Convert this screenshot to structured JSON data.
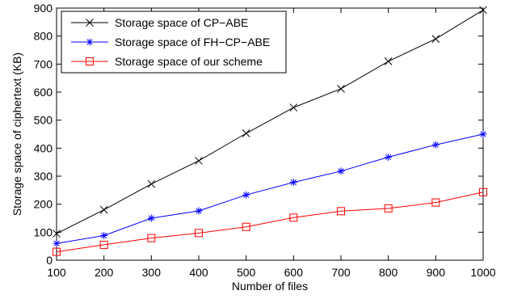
{
  "chart_data": {
    "type": "line",
    "xlabel": "Number of files",
    "ylabel": "Storage space of ciphertext (KB)",
    "xlim": [
      100,
      1000
    ],
    "ylim": [
      0,
      900
    ],
    "x": [
      100,
      200,
      300,
      400,
      500,
      600,
      700,
      800,
      900,
      1000
    ],
    "x_ticks": [
      "100",
      "200",
      "300",
      "400",
      "500",
      "600",
      "700",
      "800",
      "900",
      "1000"
    ],
    "y_ticks": [
      "0",
      "100",
      "200",
      "300",
      "400",
      "500",
      "600",
      "700",
      "800",
      "900"
    ],
    "grid": false,
    "legend_position": "top-left",
    "series": [
      {
        "name": "Storage space of CP−ABE",
        "color": "#000000",
        "marker": "x",
        "values": [
          95,
          180,
          272,
          355,
          453,
          545,
          612,
          710,
          790,
          893
        ]
      },
      {
        "name": "Storage space of FH−CP−ABE",
        "color": "#0000ff",
        "marker": "asterisk",
        "values": [
          60,
          88,
          150,
          176,
          233,
          278,
          318,
          368,
          412,
          450
        ]
      },
      {
        "name": "Storage space of our scheme",
        "color": "#ff0000",
        "marker": "square",
        "values": [
          30,
          55,
          79,
          97,
          119,
          152,
          175,
          185,
          206,
          243
        ]
      }
    ]
  }
}
